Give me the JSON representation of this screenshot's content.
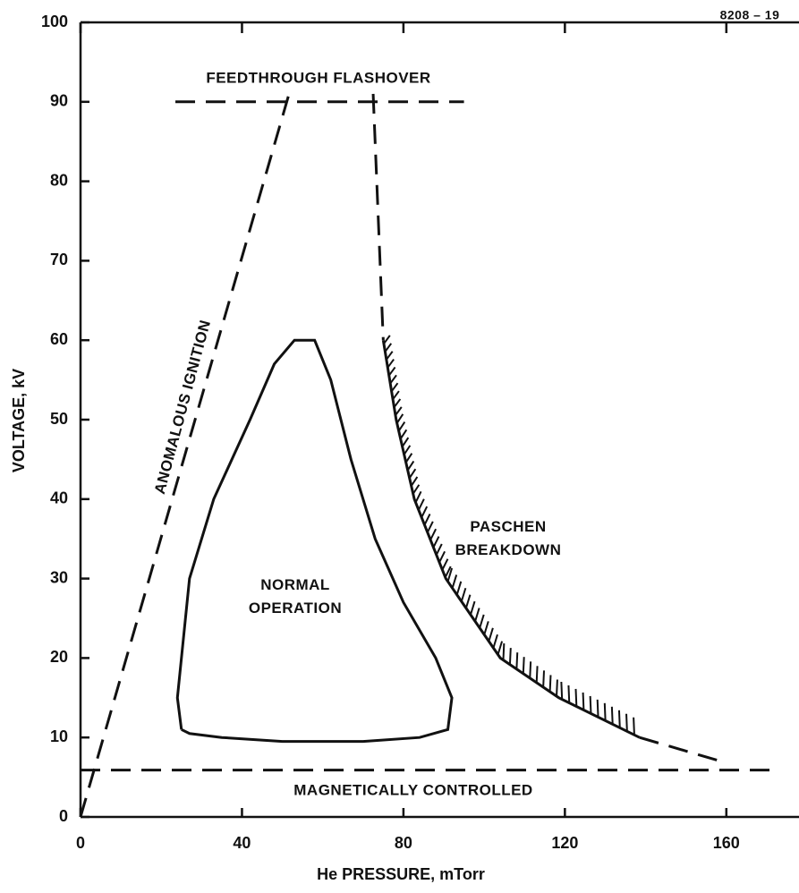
{
  "chart_data": {
    "type": "line",
    "figure_number": "8208 – 19",
    "xlabel": "He PRESSURE, mTorr",
    "ylabel": "VOLTAGE, kV",
    "xlim": [
      0,
      178
    ],
    "ylim": [
      0,
      100
    ],
    "xticks": [
      0,
      40,
      80,
      120,
      160
    ],
    "yticks": [
      0,
      10,
      20,
      30,
      40,
      50,
      60,
      70,
      80,
      90,
      100
    ],
    "series": [
      {
        "name": "ANOMALOUS IGNITION",
        "color": "#111111",
        "dashed": true,
        "x": [
          0,
          52
        ],
        "values": [
          0,
          91.6
        ]
      },
      {
        "name": "FEEDTHROUGH FLASHOVER",
        "color": "#111111",
        "dashed": true,
        "x": [
          23.5,
          95
        ],
        "values": [
          90,
          90
        ]
      },
      {
        "name": "MAGNETICALLY CONTROLLED",
        "color": "#111111",
        "dashed": true,
        "x": [
          0,
          171
        ],
        "values": [
          5.9,
          5.9
        ]
      },
      {
        "name": "PASCHEN BREAKDOWN",
        "color": "#111111",
        "dashed": false,
        "x": [
          72.5,
          75,
          78.2,
          82.7,
          90.5,
          104,
          118.5,
          138.5,
          158.7
        ],
        "values": [
          91,
          60,
          50,
          40,
          30,
          20,
          15,
          10,
          7
        ]
      },
      {
        "name": "NORMAL OPERATION",
        "color": "#111111",
        "dashed": false,
        "x": [
          25,
          24,
          27,
          33,
          42,
          48,
          53,
          58,
          62,
          67,
          73,
          80,
          88,
          92,
          91,
          84,
          70,
          50,
          35,
          27,
          25
        ],
        "values": [
          11,
          15,
          30,
          40,
          50,
          57,
          60,
          60,
          55,
          45,
          35,
          27,
          20,
          15,
          11,
          10,
          9.5,
          9.5,
          10,
          10.5,
          11
        ]
      }
    ]
  }
}
